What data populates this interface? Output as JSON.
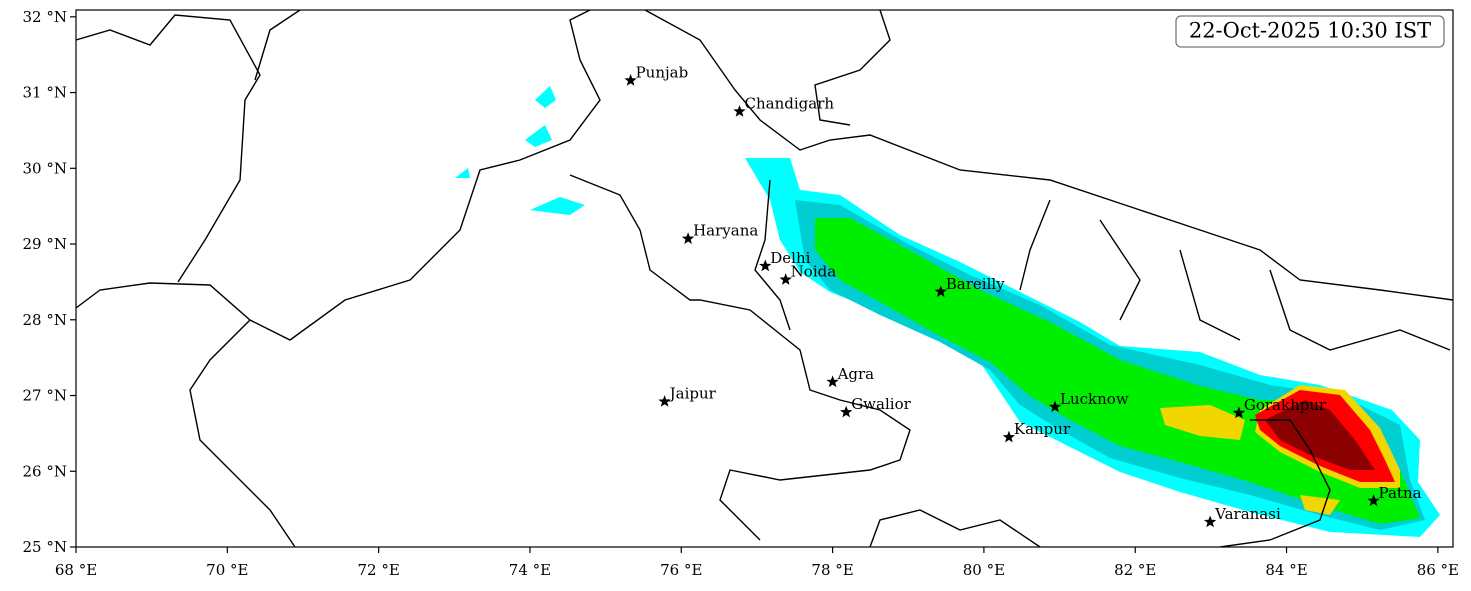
{
  "map": {
    "timestamp": "22-Oct-2025 10:30 IST",
    "xlim": [
      68,
      86.2
    ],
    "ylim": [
      25,
      32.09
    ],
    "xticks": [
      {
        "value": 68,
        "label": "68 °E"
      },
      {
        "value": 70,
        "label": "70 °E"
      },
      {
        "value": 72,
        "label": "72 °E"
      },
      {
        "value": 74,
        "label": "74 °E"
      },
      {
        "value": 76,
        "label": "76 °E"
      },
      {
        "value": 78,
        "label": "78 °E"
      },
      {
        "value": 80,
        "label": "80 °E"
      },
      {
        "value": 82,
        "label": "82 °E"
      },
      {
        "value": 84,
        "label": "84 °E"
      },
      {
        "value": 86,
        "label": "86 °E"
      }
    ],
    "yticks": [
      {
        "value": 25,
        "label": "25 °N"
      },
      {
        "value": 26,
        "label": "26 °N"
      },
      {
        "value": 27,
        "label": "27 °N"
      },
      {
        "value": 28,
        "label": "28 °N"
      },
      {
        "value": 29,
        "label": "29 °N"
      },
      {
        "value": 30,
        "label": "30 °N"
      },
      {
        "value": 31,
        "label": "31 °N"
      },
      {
        "value": 32,
        "label": "32 °N"
      }
    ],
    "cities": [
      {
        "name": "Punjab",
        "lon": 75.33,
        "lat": 31.16
      },
      {
        "name": "Chandigarh",
        "lon": 76.77,
        "lat": 30.75
      },
      {
        "name": "Haryana",
        "lon": 76.09,
        "lat": 29.07
      },
      {
        "name": "Delhi",
        "lon": 77.11,
        "lat": 28.71
      },
      {
        "name": "Noida",
        "lon": 77.38,
        "lat": 28.53
      },
      {
        "name": "Bareilly",
        "lon": 79.43,
        "lat": 28.37
      },
      {
        "name": "Agra",
        "lon": 78.0,
        "lat": 27.18
      },
      {
        "name": "Jaipur",
        "lon": 75.78,
        "lat": 26.92
      },
      {
        "name": "Gwalior",
        "lon": 78.18,
        "lat": 26.78
      },
      {
        "name": "Lucknow",
        "lon": 80.94,
        "lat": 26.85
      },
      {
        "name": "Kanpur",
        "lon": 80.33,
        "lat": 26.45
      },
      {
        "name": "Gorakhpur",
        "lon": 83.37,
        "lat": 26.77
      },
      {
        "name": "Patna",
        "lon": 85.15,
        "lat": 25.61
      },
      {
        "name": "Varanasi",
        "lon": 82.99,
        "lat": 25.33
      }
    ]
  }
}
